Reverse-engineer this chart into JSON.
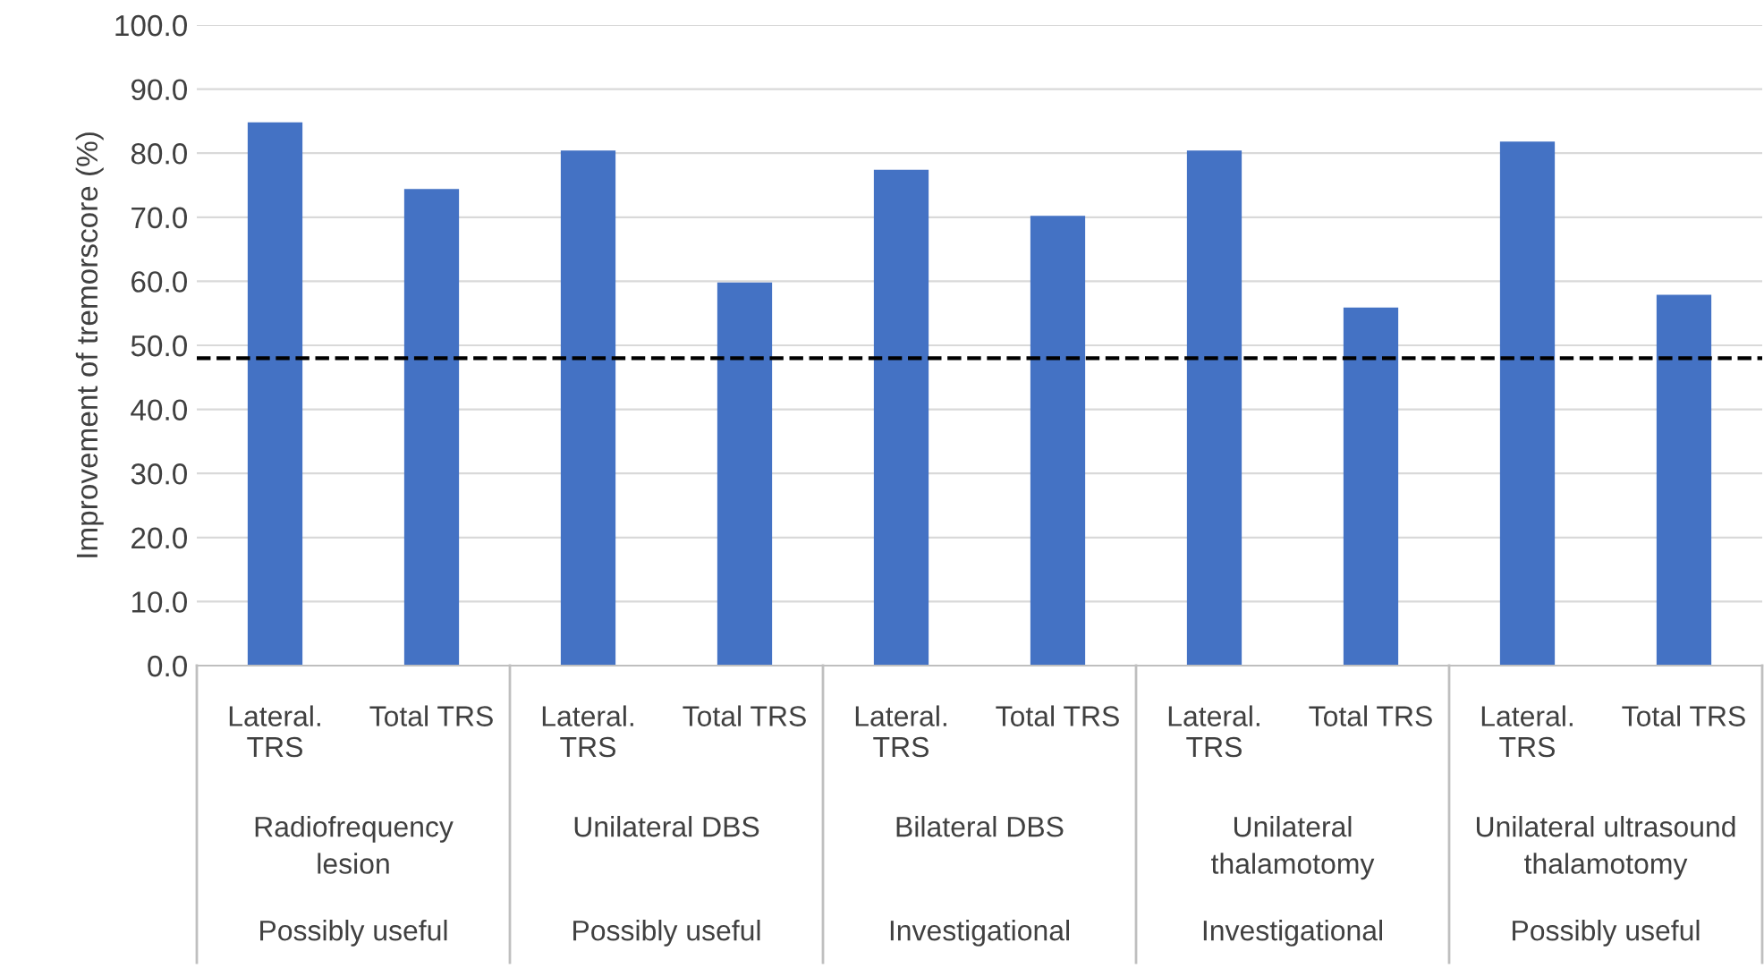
{
  "chart_data": {
    "type": "bar",
    "ylabel": "Improvement of tremorscore (%)",
    "categories": [
      "Lateral.\nTRS",
      "Total TRS",
      "Lateral.\nTRS",
      "Total TRS",
      "Lateral.\nTRS",
      "Total TRS",
      "Lateral.\nTRS",
      "Total TRS",
      "Lateral.\nTRS",
      "Total TRS"
    ],
    "values": [
      84.8,
      74.4,
      80.4,
      59.8,
      77.4,
      70.2,
      80.4,
      55.9,
      81.8,
      57.9
    ],
    "color": "#4472c4",
    "ylim": [
      0,
      100
    ],
    "yticks": [
      {
        "value": 0,
        "label": "0.0"
      },
      {
        "value": 10,
        "label": "10.0"
      },
      {
        "value": 20,
        "label": "20.0"
      },
      {
        "value": 30,
        "label": "30.0"
      },
      {
        "value": 40,
        "label": "40.0"
      },
      {
        "value": 50,
        "label": "50.0"
      },
      {
        "value": 60,
        "label": "60.0"
      },
      {
        "value": 70,
        "label": "70.0"
      },
      {
        "value": 80,
        "label": "80.0"
      },
      {
        "value": 90,
        "label": "90.0"
      },
      {
        "value": 100,
        "label": "100.0"
      }
    ],
    "grid": "y",
    "ref_lines": [
      {
        "axis": "y",
        "value": 48,
        "color": "#000000",
        "line_style": "dashed"
      }
    ],
    "annotations": [
      "Radiofrequency\nlesion",
      "Unilateral DBS",
      "Bilateral DBS",
      "Unilateral\nthalamotomy",
      "Unilateral ultrasound\nthalamotomy",
      "Possibly useful",
      "Possibly useful",
      "Investigational",
      "Investigational",
      "Possibly useful"
    ]
  }
}
